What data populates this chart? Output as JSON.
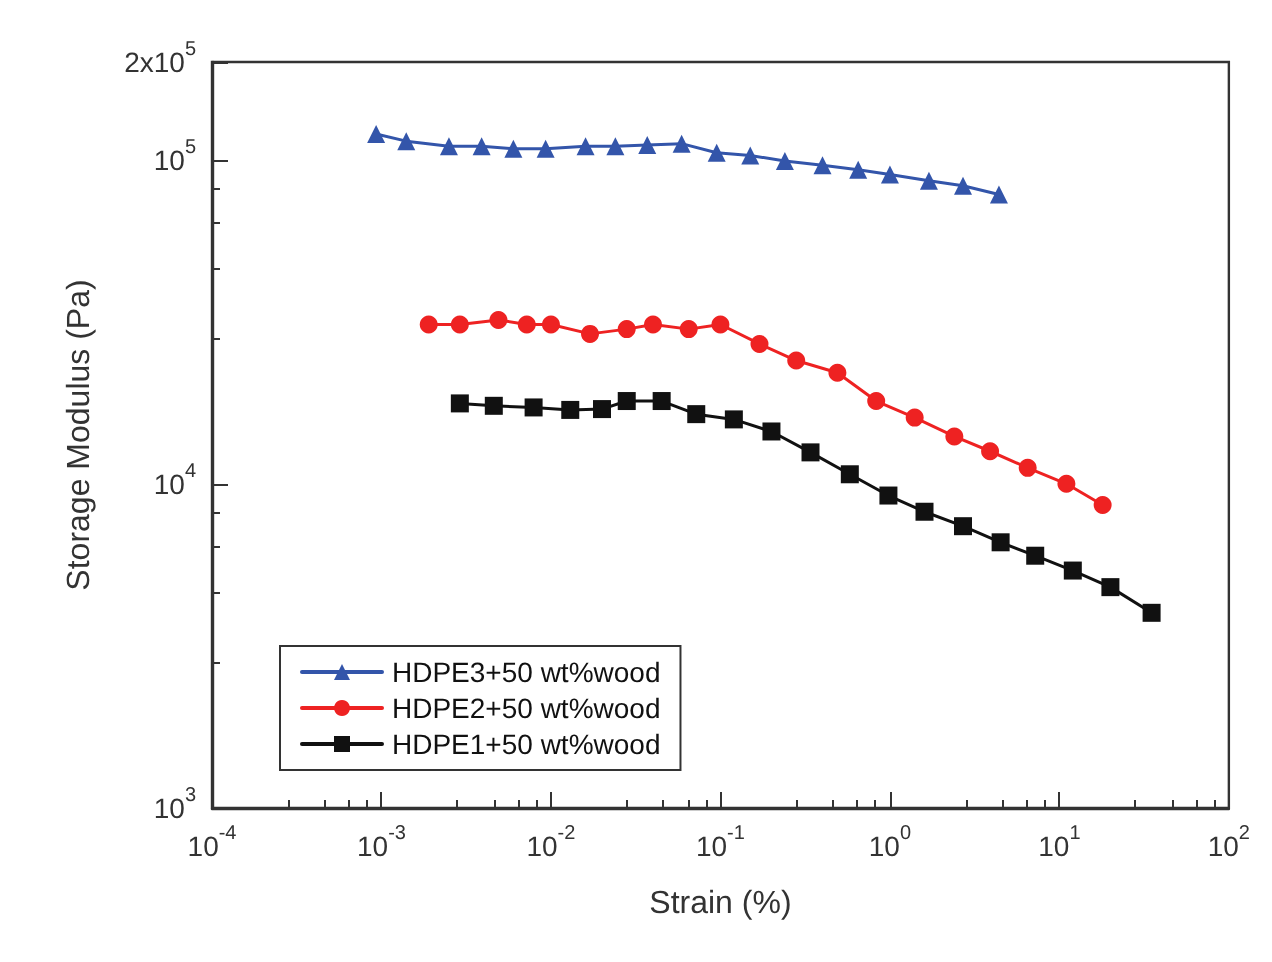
{
  "chart_data": {
    "type": "line",
    "xlabel": "Strain (%)",
    "ylabel": "Storage Modulus (Pa)",
    "log": "xy",
    "grid": false,
    "legend": "bottom left",
    "line_style": "solid",
    "xlim": [
      0.0001,
      100
    ],
    "xticks": [
      {
        "value": 0.0001,
        "label": "10$^{-4}$"
      },
      {
        "value": 0.001,
        "label": "10$^{-3}$"
      },
      {
        "value": 0.01,
        "label": "10$^{-2}$"
      },
      {
        "value": 0.1,
        "label": "10$^{-1}$"
      },
      {
        "value": 1,
        "label": "10$^{0}$"
      },
      {
        "value": 10,
        "label": "10$^{1}$"
      },
      {
        "value": 100,
        "label": "10$^{2}$"
      }
    ],
    "ylim": [
      1000,
      200000
    ],
    "yticks": [
      {
        "value": 1000,
        "label": "10$^{3}$"
      },
      {
        "value": 10000,
        "label": "10$^{4}$"
      },
      {
        "value": 100000,
        "label": "10$^{5}$"
      },
      {
        "value": 200000,
        "label": "2x10$^{5}$"
      }
    ],
    "series": [
      {
        "name": "HDPE3+50 wt%wood",
        "color": "#3355aa",
        "marker": "triangle",
        "x": [
          0.00093,
          0.0014,
          0.0025,
          0.0039,
          0.006,
          0.0093,
          0.016,
          0.024,
          0.037,
          0.059,
          0.095,
          0.15,
          0.24,
          0.4,
          0.65,
          1.0,
          1.7,
          2.7,
          4.4
        ],
        "values": [
          120000,
          114000,
          110000,
          110000,
          108000,
          108000,
          110000,
          110000,
          111000,
          112000,
          105000,
          103000,
          99000,
          96000,
          93000,
          90000,
          86000,
          83000,
          78000
        ]
      },
      {
        "name": "HDPE2+50 wt%wood",
        "color": "#ee2222",
        "marker": "circle",
        "x": [
          0.0019,
          0.0029,
          0.0049,
          0.0072,
          0.01,
          0.017,
          0.028,
          0.04,
          0.065,
          0.1,
          0.17,
          0.28,
          0.49,
          0.83,
          1.4,
          2.4,
          3.9,
          6.5,
          11,
          18
        ],
        "values": [
          31000,
          31000,
          32000,
          31000,
          31000,
          29000,
          30000,
          31000,
          30000,
          31000,
          27000,
          24000,
          22000,
          18000,
          16000,
          14000,
          12600,
          11200,
          10000,
          8600
        ]
      },
      {
        "name": "HDPE1+50 wt%wood",
        "color": "#111111",
        "marker": "square",
        "x": [
          0.0029,
          0.0046,
          0.0079,
          0.013,
          0.02,
          0.028,
          0.045,
          0.072,
          0.12,
          0.2,
          0.34,
          0.58,
          0.98,
          1.6,
          2.7,
          4.5,
          7.2,
          12,
          20,
          35
        ],
        "values": [
          17700,
          17400,
          17200,
          16900,
          17000,
          18000,
          18000,
          16400,
          15800,
          14500,
          12500,
          10700,
          9200,
          8200,
          7400,
          6600,
          6000,
          5400,
          4800,
          4000
        ]
      }
    ]
  }
}
